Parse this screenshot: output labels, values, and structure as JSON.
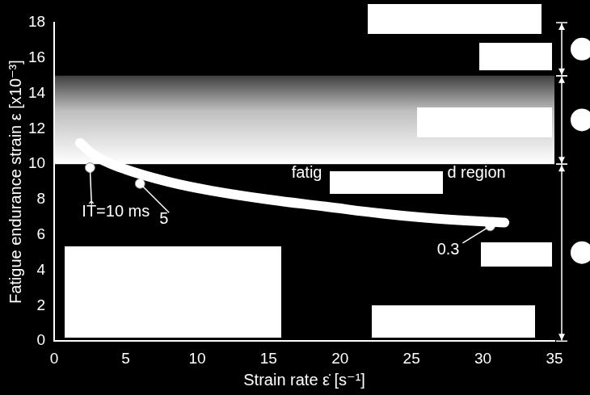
{
  "chart_data": {
    "type": "scatter",
    "x_label": "Strain rate ε̇ [s⁻¹]",
    "y_label": "Fatigue endurance strain ε [x10⁻³]",
    "xlim": [
      0,
      35
    ],
    "xticks": [
      0,
      5,
      10,
      15,
      20,
      25,
      30,
      35
    ],
    "ylim": [
      0,
      18
    ],
    "yticks": [
      0,
      2,
      4,
      6,
      8,
      10,
      12,
      14,
      16,
      18
    ],
    "grid": false,
    "color": "#ffffff",
    "curve": {
      "x": [
        1.8,
        3,
        5,
        8,
        11,
        15,
        19,
        23,
        27,
        31.5
      ],
      "y": [
        11.2,
        10.4,
        9.7,
        9.0,
        8.5,
        8.0,
        7.6,
        7.2,
        6.9,
        6.7
      ]
    },
    "points": {
      "x": [
        2.5,
        6,
        30.5
      ],
      "y": [
        9.8,
        8.9,
        6.5
      ],
      "labels": [
        "IT̂=10 ms",
        "5",
        "0.3"
      ]
    },
    "regions": [
      [
        0,
        10
      ],
      [
        10,
        15
      ],
      [
        15,
        18
      ]
    ],
    "annotations": [
      {
        "text": "fatig",
        "x": 16.6,
        "y": 9.5
      },
      {
        "text": "d region",
        "x": 27.5,
        "y": 9.5
      }
    ]
  }
}
